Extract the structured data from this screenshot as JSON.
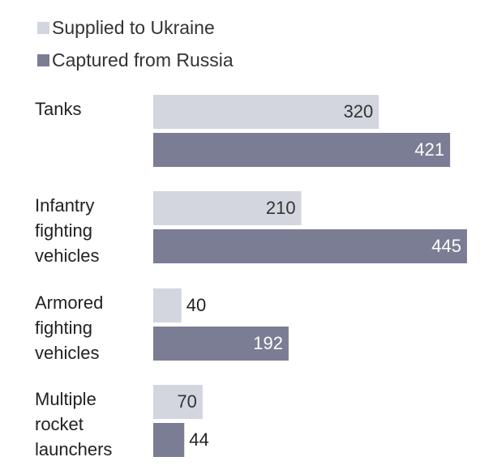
{
  "chart_data": {
    "type": "bar",
    "orientation": "horizontal",
    "legend_position": "top-left",
    "grid": false,
    "xlim": [
      0,
      450
    ],
    "categories": [
      [
        "Tanks"
      ],
      [
        "Infantry",
        "fighting",
        "vehicles"
      ],
      [
        "Armored",
        "fighting",
        "vehicles"
      ],
      [
        "Multiple",
        "rocket",
        "launchers"
      ]
    ],
    "series": [
      {
        "name": "Supplied to Ukraine",
        "color": "#d3d6df",
        "values": [
          320,
          210,
          40,
          70
        ],
        "labels": [
          "320",
          "210",
          "40",
          "70"
        ]
      },
      {
        "name": "Captured from Russia",
        "color": "#7a7d93",
        "values": [
          421,
          445,
          192,
          44
        ],
        "labels": [
          "421",
          "445",
          "192",
          "44"
        ]
      }
    ]
  }
}
